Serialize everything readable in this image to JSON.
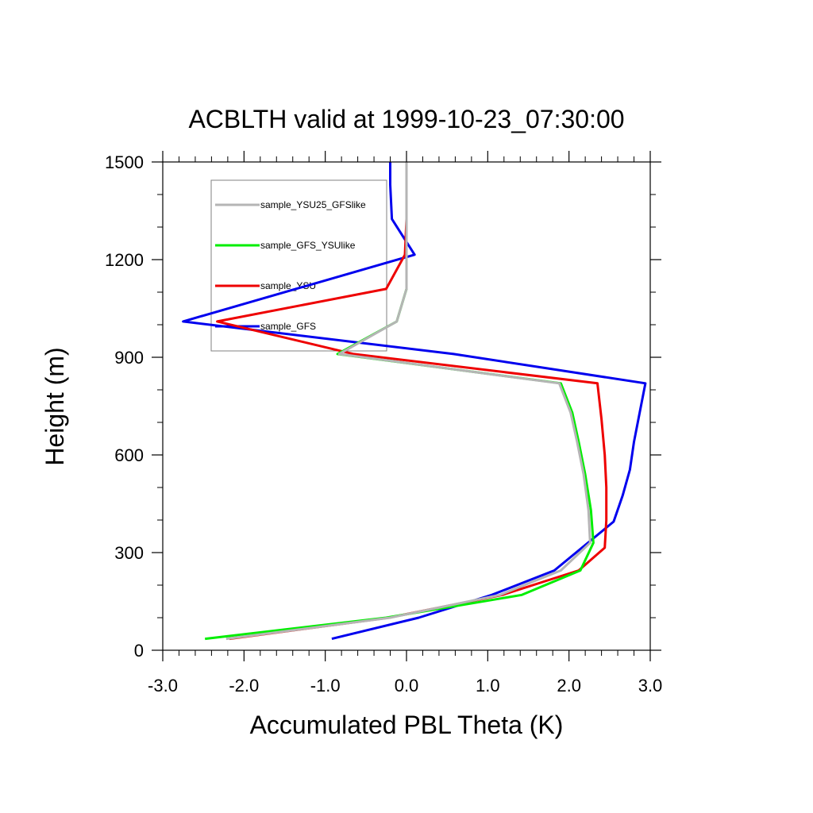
{
  "chart_data": {
    "type": "line",
    "title": "ACBLTH valid at 1999-10-23_07:30:00",
    "xlabel": "Accumulated PBL Theta (K)",
    "ylabel": "Height (m)",
    "xlim": [
      -3.0,
      3.0
    ],
    "ylim": [
      0,
      1500
    ],
    "xticks": [
      -3.0,
      -2.0,
      -1.0,
      0.0,
      1.0,
      2.0,
      3.0
    ],
    "xtick_labels": [
      "-3.0",
      "-2.0",
      "-1.0",
      "0.0",
      "1.0",
      "2.0",
      "3.0"
    ],
    "yticks": [
      0,
      300,
      600,
      900,
      1200,
      1500
    ],
    "ytick_labels": [
      "0",
      "300",
      "600",
      "900",
      "1200",
      "1500"
    ],
    "grid": false,
    "legend_position": "top-left",
    "series": [
      {
        "name": "sample_GFS",
        "color": "#0000ee",
        "x": [
          -0.92,
          0.15,
          1.05,
          1.82,
          2.55,
          2.66,
          2.75,
          2.8,
          2.87,
          2.94,
          0.58,
          -2.75,
          0.1,
          -0.18,
          -0.2,
          -0.2
        ],
        "y": [
          35,
          100,
          170,
          245,
          395,
          475,
          555,
          640,
          730,
          820,
          910,
          1010,
          1215,
          1325,
          1430,
          1500
        ]
      },
      {
        "name": "sample_YSU",
        "color": "#ee0000",
        "x": [
          -2.18,
          -0.22,
          1.18,
          2.12,
          2.44,
          2.46,
          2.46,
          2.44,
          2.4,
          2.35,
          -0.65,
          -2.33,
          -0.25,
          -0.02,
          0.0,
          0.0
        ],
        "y": [
          35,
          100,
          170,
          245,
          315,
          400,
          500,
          600,
          710,
          820,
          910,
          1010,
          1110,
          1215,
          1325,
          1500
        ]
      },
      {
        "name": "sample_GFS_YSUlike",
        "color": "#00ee00",
        "x": [
          -2.48,
          -0.25,
          1.42,
          2.14,
          2.3,
          2.27,
          2.2,
          2.12,
          2.04,
          1.9,
          -0.85,
          -0.12,
          0.0,
          0.0,
          0.0
        ],
        "y": [
          35,
          100,
          170,
          245,
          330,
          430,
          540,
          640,
          730,
          820,
          910,
          1010,
          1110,
          1215,
          1500
        ]
      },
      {
        "name": "sample_YSU25_GFSlike",
        "color": "#b5b5b5",
        "x": [
          -2.22,
          -0.2,
          1.15,
          1.9,
          2.26,
          2.24,
          2.18,
          2.1,
          2.02,
          1.88,
          -0.83,
          -0.12,
          0.0,
          0.0,
          0.0
        ],
        "y": [
          35,
          100,
          170,
          245,
          330,
          430,
          540,
          640,
          730,
          820,
          910,
          1010,
          1110,
          1215,
          1500
        ]
      }
    ]
  }
}
